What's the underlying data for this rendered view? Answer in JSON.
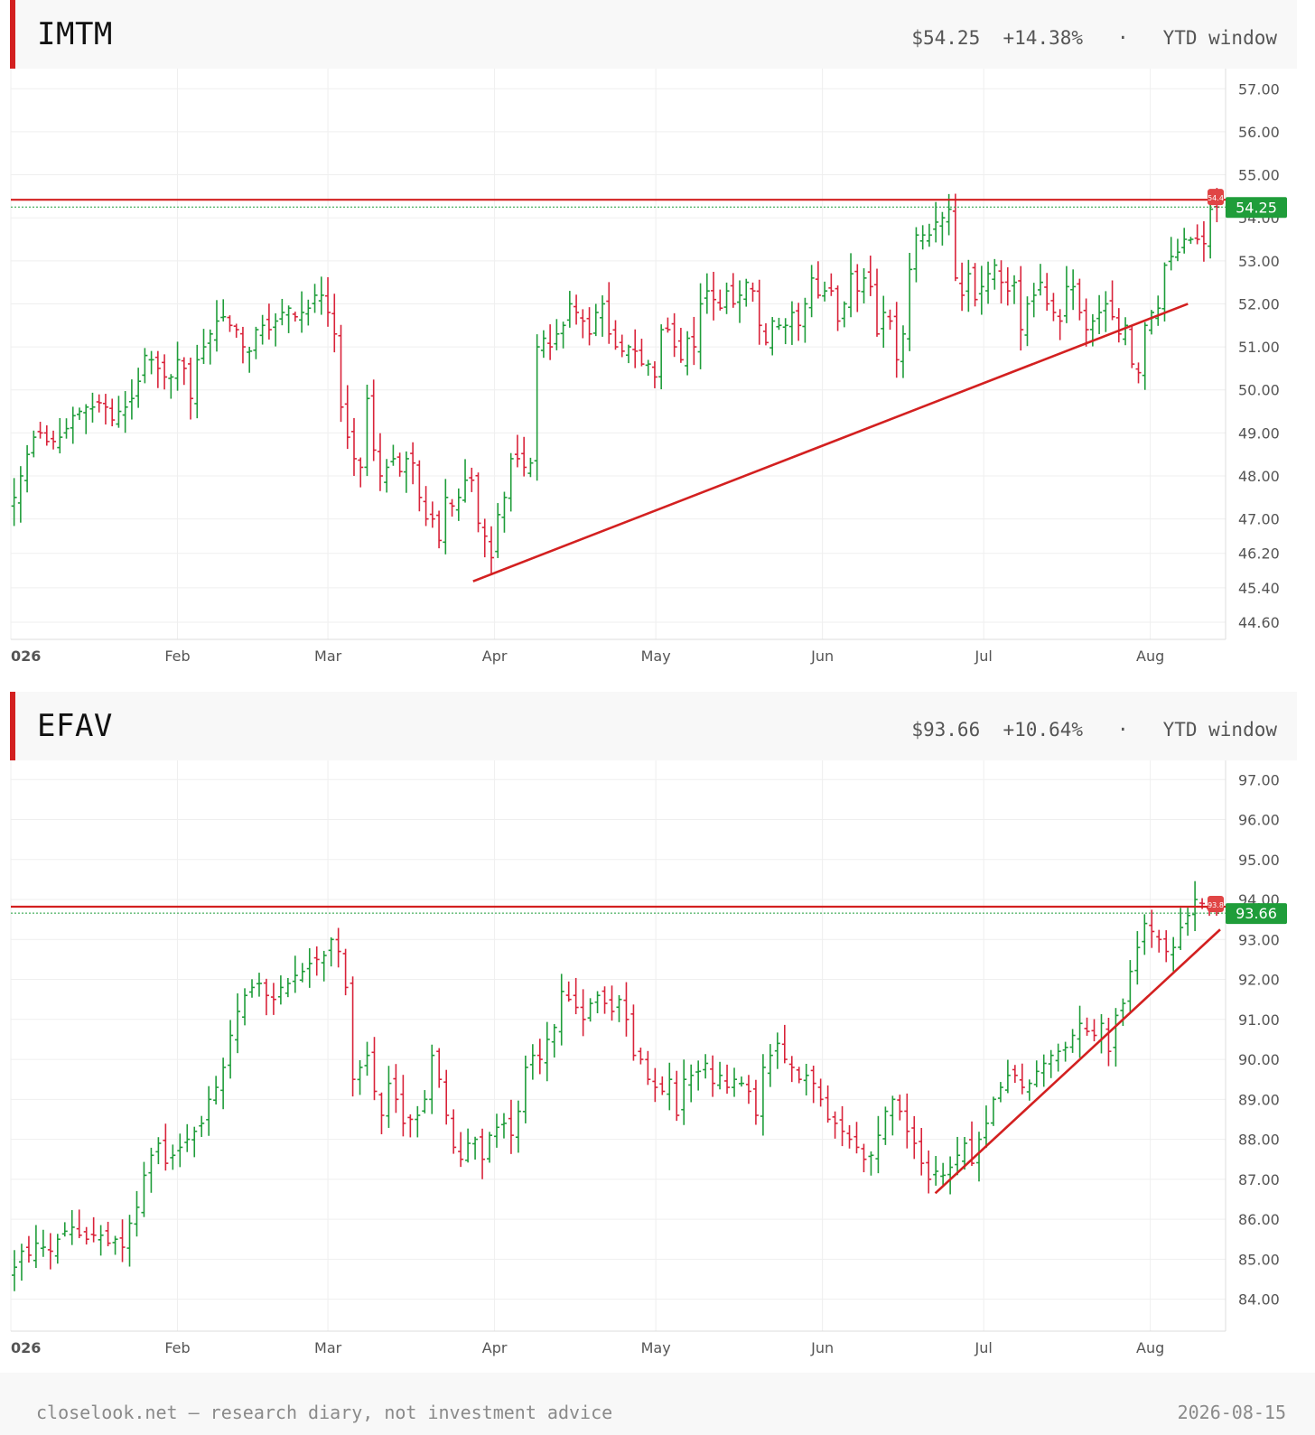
{
  "colors": {
    "up": "#1f9d3a",
    "down": "#d9233a",
    "line": "#d32020",
    "grid": "#efefef"
  },
  "x_month_labels": [
    "026",
    "Feb",
    "Mar",
    "Apr",
    "May",
    "Jun",
    "Jul",
    "Aug"
  ],
  "footer": {
    "left": "closelook.net — research diary, not investment advice",
    "right": "2026-08-15"
  },
  "panels": [
    {
      "ticker": "IMTM",
      "price": "$54.25",
      "change": "+14.38%",
      "separator": "·",
      "window": "YTD window",
      "chart_data": {
        "type": "ohlc",
        "y_ticks": [
          57.0,
          56.0,
          55.0,
          54.0,
          53.0,
          52.0,
          51.0,
          50.0,
          49.0,
          48.0,
          47.0,
          46.2,
          45.4,
          44.6
        ],
        "y_tick_labels": [
          "57.00",
          "56.00",
          "55.00",
          "54.00",
          "53.00",
          "52.00",
          "51.00",
          "50.00",
          "49.00",
          "48.00",
          "47.00",
          "46.20",
          "45.40",
          "44.60"
        ],
        "y_range": [
          44.2,
          57.3
        ],
        "x_range_days": [
          0,
          225
        ],
        "month_day_offsets": [
          0,
          31,
          59,
          90,
          120,
          151,
          181,
          212
        ],
        "last_price_label": "54.25",
        "last_price": 54.25,
        "resistance_level": 54.42,
        "resistance_label": "54.4",
        "trendline": {
          "from": {
            "day": 86,
            "price": 45.55
          },
          "to": {
            "day": 219,
            "price": 52.0
          }
        },
        "closes": [
          47.5,
          48.0,
          48.5,
          48.9,
          49.0,
          48.8,
          48.8,
          48.9,
          49.1,
          49.4,
          49.5,
          49.6,
          49.6,
          49.7,
          49.6,
          49.3,
          49.5,
          49.6,
          49.8,
          50.2,
          50.8,
          50.7,
          50.5,
          50.3,
          50.3,
          50.7,
          50.5,
          49.8,
          50.7,
          51.0,
          51.3,
          51.6,
          51.7,
          51.5,
          51.4,
          51.0,
          50.9,
          51.4,
          51.5,
          51.4,
          51.6,
          51.8,
          51.9,
          51.7,
          51.8,
          51.9,
          52.2,
          52.2,
          51.8,
          51.3,
          49.6,
          48.9,
          48.4,
          48.2,
          49.8,
          48.6,
          48.0,
          48.2,
          48.4,
          48.1,
          48.4,
          48.3,
          47.5,
          47.0,
          47.0,
          46.5,
          47.5,
          47.3,
          47.5,
          47.9,
          47.9,
          46.9,
          46.6,
          46.1,
          47.1,
          47.5,
          48.4,
          48.4,
          48.2,
          48.3,
          51.0,
          51.2,
          51.0,
          51.3,
          51.5,
          52.0,
          51.8,
          51.6,
          51.3,
          51.8,
          52.0,
          51.3,
          51.0,
          50.9,
          51.0,
          50.9,
          50.6,
          50.6,
          50.3,
          51.4,
          51.4,
          51.0,
          50.7,
          51.2,
          51.0,
          52.0,
          52.3,
          52.1,
          51.9,
          52.3,
          52.0,
          52.2,
          52.5,
          52.3,
          51.5,
          51.1,
          51.6,
          51.5,
          51.5,
          51.8,
          51.5,
          52.0,
          52.6,
          52.2,
          52.3,
          52.3,
          51.6,
          52.0,
          52.7,
          52.3,
          52.6,
          52.4,
          51.3,
          51.8,
          51.6,
          50.7,
          51.3,
          52.8,
          53.6,
          53.6,
          53.6,
          53.9,
          54.0,
          54.2,
          52.6,
          52.2,
          52.7,
          52.1,
          52.4,
          52.7,
          52.9,
          52.5,
          52.3,
          52.5,
          51.4,
          52.0,
          52.2,
          52.5,
          52.0,
          51.8,
          51.6,
          52.4,
          52.4,
          51.8,
          51.4,
          51.6,
          51.8,
          52.0,
          51.7,
          51.3,
          51.5,
          50.6,
          50.4,
          51.5,
          51.8,
          51.9,
          52.9,
          53.1,
          53.2,
          53.5,
          53.5,
          53.5,
          53.4,
          54.2,
          54.25
        ]
      }
    },
    {
      "ticker": "EFAV",
      "price": "$93.66",
      "change": "+10.64%",
      "separator": "·",
      "window": "YTD window",
      "chart_data": {
        "type": "ohlc",
        "y_ticks": [
          97.0,
          96.0,
          95.0,
          94.0,
          93.0,
          92.0,
          91.0,
          90.0,
          89.0,
          88.0,
          87.0,
          86.0,
          85.0,
          84.0
        ],
        "y_tick_labels": [
          "97.00",
          "96.00",
          "95.00",
          "94.00",
          "93.00",
          "92.00",
          "91.00",
          "90.00",
          "89.00",
          "88.00",
          "87.00",
          "86.00",
          "85.00",
          "84.00"
        ],
        "y_range": [
          83.2,
          97.3
        ],
        "x_range_days": [
          0,
          225
        ],
        "month_day_offsets": [
          0,
          31,
          59,
          90,
          120,
          151,
          181,
          212
        ],
        "last_price_label": "93.66",
        "last_price": 93.66,
        "resistance_level": 93.82,
        "resistance_label": "93.8",
        "trendline": {
          "from": {
            "day": 172,
            "price": 86.65
          },
          "to": {
            "day": 225,
            "price": 93.25
          }
        },
        "closes": [
          84.8,
          85.2,
          85.1,
          85.4,
          85.3,
          85.2,
          85.5,
          85.7,
          85.8,
          85.6,
          85.5,
          85.6,
          85.6,
          85.4,
          85.5,
          85.3,
          85.9,
          86.3,
          87.1,
          87.6,
          87.9,
          87.4,
          87.6,
          87.8,
          88.0,
          88.2,
          88.4,
          89.0,
          89.3,
          89.8,
          90.6,
          91.2,
          91.6,
          91.8,
          91.9,
          91.6,
          91.5,
          91.8,
          91.9,
          92.1,
          92.2,
          92.4,
          92.5,
          92.6,
          93.0,
          92.7,
          91.8,
          89.5,
          89.8,
          90.1,
          89.2,
          88.6,
          89.4,
          89.0,
          88.4,
          88.5,
          88.6,
          89.0,
          90.1,
          89.5,
          88.6,
          87.8,
          87.5,
          87.9,
          88.0,
          87.5,
          88.1,
          88.3,
          88.4,
          88.1,
          88.7,
          89.8,
          90.1,
          90.0,
          90.5,
          90.8,
          91.7,
          91.5,
          91.3,
          91.0,
          91.4,
          91.6,
          91.4,
          91.2,
          91.5,
          91.0,
          90.1,
          90.0,
          89.5,
          89.3,
          89.2,
          89.5,
          88.6,
          89.5,
          89.6,
          89.7,
          89.9,
          89.4,
          89.6,
          89.3,
          89.5,
          89.4,
          89.2,
          88.6,
          89.8,
          90.1,
          90.4,
          90.0,
          89.8,
          89.5,
          89.6,
          89.4,
          89.0,
          88.5,
          88.4,
          88.2,
          88.0,
          87.8,
          87.5,
          87.6,
          88.1,
          88.7,
          89.0,
          88.7,
          88.2,
          87.9,
          87.4,
          87.0,
          87.2,
          87.1,
          87.3,
          87.6,
          87.9,
          87.4,
          88.0,
          88.4,
          89.0,
          89.3,
          89.6,
          89.6,
          89.3,
          89.4,
          89.7,
          89.9,
          90.1,
          90.2,
          90.3,
          90.6,
          90.9,
          90.7,
          90.6,
          90.9,
          90.2,
          91.1,
          91.4,
          92.2,
          92.8,
          93.4,
          93.2,
          93.0,
          92.7,
          92.8,
          93.3,
          93.6,
          94.0,
          93.9,
          93.7,
          93.66
        ]
      }
    }
  ]
}
